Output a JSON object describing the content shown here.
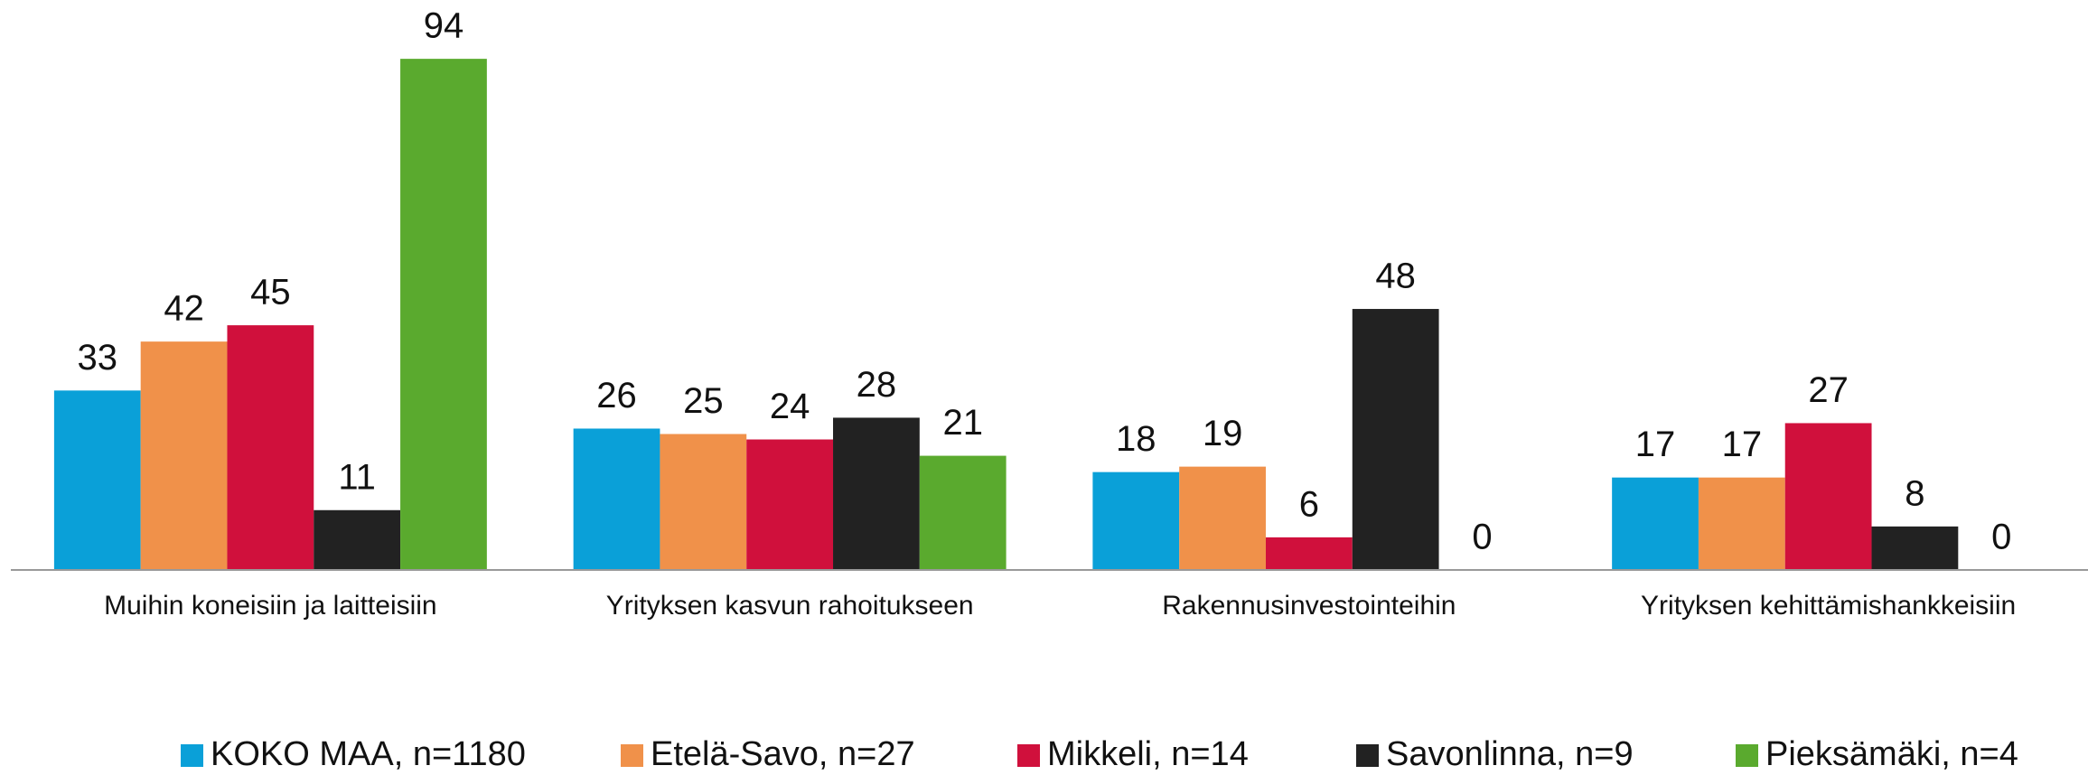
{
  "chart_data": {
    "type": "bar",
    "categories": [
      "Muihin koneisiin ja laitteisiin",
      "Yrityksen kasvun rahoitukseen",
      "Rakennusinvestointeihin",
      "Yrityksen kehittämishankkeisiin"
    ],
    "series": [
      {
        "name": "KOKO MAA, n=1180",
        "color": "#0aa0d8",
        "values": [
          33,
          26,
          18,
          17
        ]
      },
      {
        "name": "Etelä-Savo, n=27",
        "color": "#f0914a",
        "values": [
          42,
          25,
          19,
          17
        ]
      },
      {
        "name": "Mikkeli, n=14",
        "color": "#d0103c",
        "values": [
          45,
          24,
          6,
          27
        ]
      },
      {
        "name": "Savonlinna, n=9",
        "color": "#222222",
        "values": [
          11,
          28,
          48,
          8
        ]
      },
      {
        "name": "Pieksämäki, n=4",
        "color": "#5aaa2e",
        "values": [
          94,
          21,
          0,
          0
        ]
      }
    ],
    "ylim": [
      0,
      100
    ],
    "legend": "bottom"
  }
}
